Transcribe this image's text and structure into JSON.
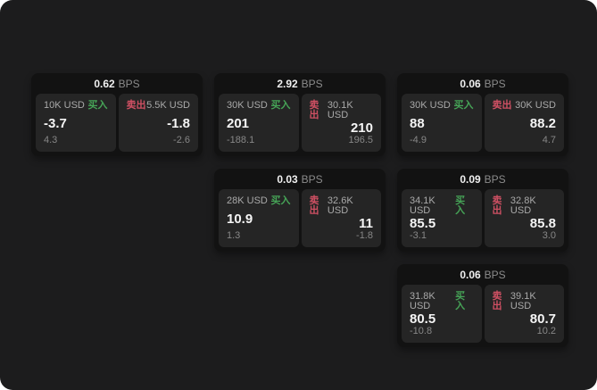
{
  "page": {
    "background": "#1c1c1d",
    "card_background": "#121212",
    "panel_background": "#252525"
  },
  "labels": {
    "bps": "BPS",
    "buy": "买入",
    "sell": "卖出"
  },
  "colors": {
    "buy": "#46a457",
    "sell": "#cf5063",
    "value_text": "#f5f5f5",
    "muted_text": "#8b8b8b"
  },
  "cards": [
    {
      "row": 1,
      "col": 1,
      "bps": "0.62",
      "buy": {
        "amount": "10K USD",
        "value": "-3.7",
        "sub": "4.3"
      },
      "sell": {
        "amount": "5.5K USD",
        "value": "-1.8",
        "sub": "-2.6"
      }
    },
    {
      "row": 1,
      "col": 2,
      "bps": "2.92",
      "buy": {
        "amount": "30K USD",
        "value": "201",
        "sub": "-188.1"
      },
      "sell": {
        "amount": "30.1K USD",
        "value": "210",
        "sub": "196.5"
      }
    },
    {
      "row": 1,
      "col": 3,
      "bps": "0.06",
      "buy": {
        "amount": "30K USD",
        "value": "88",
        "sub": "-4.9"
      },
      "sell": {
        "amount": "30K USD",
        "value": "88.2",
        "sub": "4.7"
      }
    },
    {
      "row": 2,
      "col": 2,
      "bps": "0.03",
      "buy": {
        "amount": "28K USD",
        "value": "10.9",
        "sub": "1.3"
      },
      "sell": {
        "amount": "32.6K USD",
        "value": "11",
        "sub": "-1.8"
      }
    },
    {
      "row": 2,
      "col": 3,
      "bps": "0.09",
      "buy": {
        "amount": "34.1K USD",
        "value": "85.5",
        "sub": "-3.1"
      },
      "sell": {
        "amount": "32.8K USD",
        "value": "85.8",
        "sub": "3.0"
      }
    },
    {
      "row": 3,
      "col": 3,
      "bps": "0.06",
      "buy": {
        "amount": "31.8K USD",
        "value": "80.5",
        "sub": "-10.8"
      },
      "sell": {
        "amount": "39.1K USD",
        "value": "80.7",
        "sub": "10.2"
      }
    }
  ]
}
